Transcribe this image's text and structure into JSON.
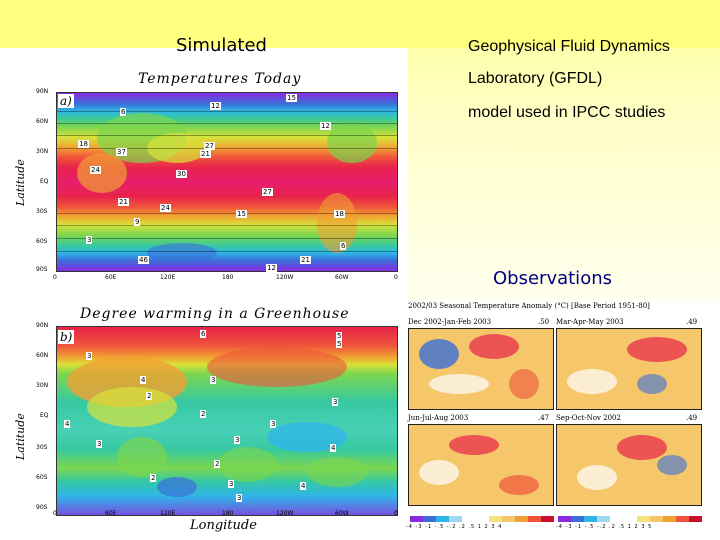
{
  "slide": {
    "label_simulated": "Simulated",
    "desc_line1": "Geophysical Fluid Dynamics",
    "desc_line2": "Laboratory (GFDL)",
    "desc_line3": "model used in IPCC studies",
    "label_observations": "Observations"
  },
  "map_a": {
    "title": "Temperatures Today",
    "panel": "a)",
    "ylabel": "Latitude",
    "lat_ticks": [
      "90N",
      "60N",
      "30N",
      "EQ",
      "30S",
      "60S",
      "90S"
    ],
    "lon_ticks": [
      "0",
      "60E",
      "120E",
      "180",
      "120W",
      "60W",
      "0"
    ],
    "labels": [
      "15",
      "12",
      "6",
      "37",
      "21",
      "27",
      "18",
      "24",
      "30",
      "3",
      "9",
      "12",
      "27",
      "21",
      "24",
      "15",
      "18",
      "6",
      "46",
      "21",
      "12"
    ]
  },
  "map_b": {
    "title": "Degree warming in a Greenhouse",
    "panel": "b)",
    "ylabel": "Latitude",
    "xlabel": "Longitude",
    "lat_ticks": [
      "90N",
      "60N",
      "30N",
      "EQ",
      "30S",
      "60S",
      "90S"
    ],
    "lon_ticks": [
      "0",
      "60E",
      "120E",
      "180",
      "120W",
      "60W",
      "0"
    ],
    "labels": [
      "5",
      "6",
      "3",
      "4",
      "3",
      "2",
      "3",
      "4",
      "2",
      "3",
      "5",
      "3",
      "4",
      "3",
      "2",
      "2",
      "3",
      "4",
      "3"
    ]
  },
  "observations": {
    "title": "2002/03 Seasonal Temperature Anomaly (°C) [Base Period 1951-80]",
    "panels": [
      {
        "label": "Dec 2002-Jan-Feb 2003",
        "value": ".50"
      },
      {
        "label": "Mar-Apr-May 2003",
        "value": ".49"
      },
      {
        "label": "Jun-Jul-Aug 2003",
        "value": ".47"
      },
      {
        "label": "Sep-Oct-Nov 2002",
        "value": ".49"
      }
    ],
    "scale_left": "-4 -3 -1 -.5 -.2 .2 .5 1 2 3 4",
    "scale_right": "-4 -3 -1 -.5 -.2 .2 .5 1 2 3 5"
  },
  "colors": {
    "background_top": "#ffff80",
    "observations_label": "#000080"
  }
}
